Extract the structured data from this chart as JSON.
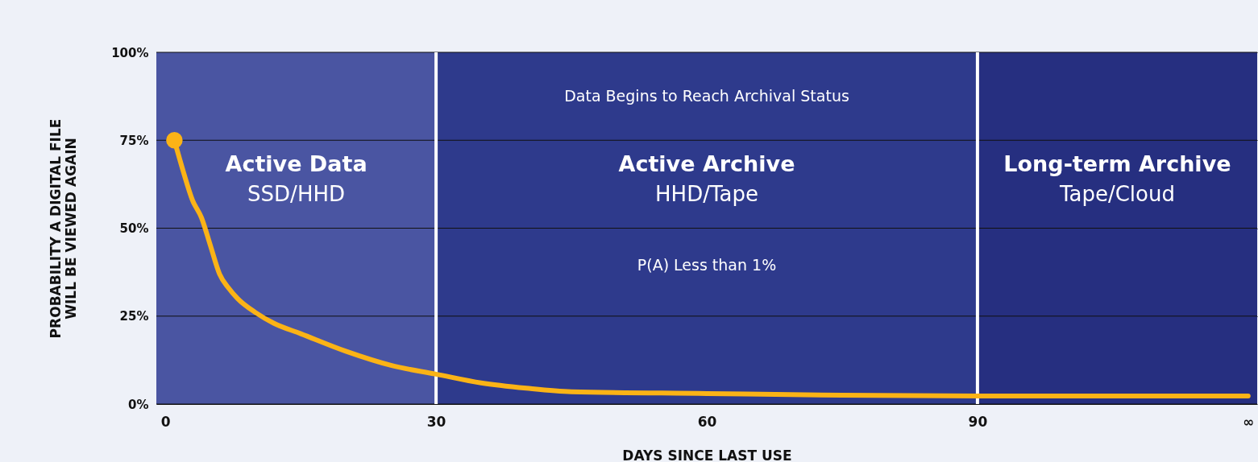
{
  "chart_data": {
    "type": "line",
    "xlabel": "DAYS SINCE LAST USE",
    "ylabel": "PROBABILITY A DIGITAL FILE\nWILL BE VIEWED AGAIN",
    "xlim": [
      -1,
      121
    ],
    "ylim": [
      0,
      100
    ],
    "xticks": [
      0,
      30,
      60,
      90,
      {
        "value": 120,
        "label": "∞"
      }
    ],
    "yticks": [
      {
        "value": 0,
        "label": "0%"
      },
      {
        "value": 25,
        "label": "25%"
      },
      {
        "value": 50,
        "label": "50%"
      },
      {
        "value": 75,
        "label": "75%"
      },
      {
        "value": 100,
        "label": "100%"
      }
    ],
    "grid": "y",
    "series": [
      {
        "color": "#fbb316",
        "marker": "none",
        "x": [
          1,
          2,
          3,
          4,
          5,
          6,
          7,
          8,
          10,
          12,
          15,
          20,
          25,
          30,
          35,
          40,
          45,
          60,
          75,
          90,
          105,
          120
        ],
        "values": [
          75,
          66,
          58,
          53,
          45,
          37,
          33,
          30,
          26,
          23,
          20,
          15,
          11,
          8.5,
          6,
          4.5,
          3.5,
          3,
          2.5,
          2.3,
          2.3,
          2.3
        ]
      },
      {
        "type": "scatter",
        "color": "#fbb316",
        "marker": "circle",
        "x": [
          1
        ],
        "values": [
          75
        ]
      }
    ],
    "bands": [
      {
        "axis": "x",
        "from": -1,
        "to": 30,
        "label": "Active Data",
        "color": "#4a55a2"
      },
      {
        "axis": "x",
        "from": 30,
        "to": 90,
        "label": "Active Archive",
        "color": "#2e3a8c"
      },
      {
        "axis": "x",
        "from": 90,
        "to": 121,
        "label": "Long-term Archive",
        "color": "#262f80"
      }
    ],
    "ref_lines": [
      {
        "axis": "x",
        "value": 30,
        "label": null,
        "color": "#ffffff"
      },
      {
        "axis": "x",
        "value": 90,
        "label": null,
        "color": "#ffffff"
      }
    ],
    "annotations": [
      "SSD/HHD",
      "HHD/Tape",
      "Tape/Cloud",
      "Data Begins to Reach Archival Status",
      "P(A) Less than 1%"
    ]
  }
}
